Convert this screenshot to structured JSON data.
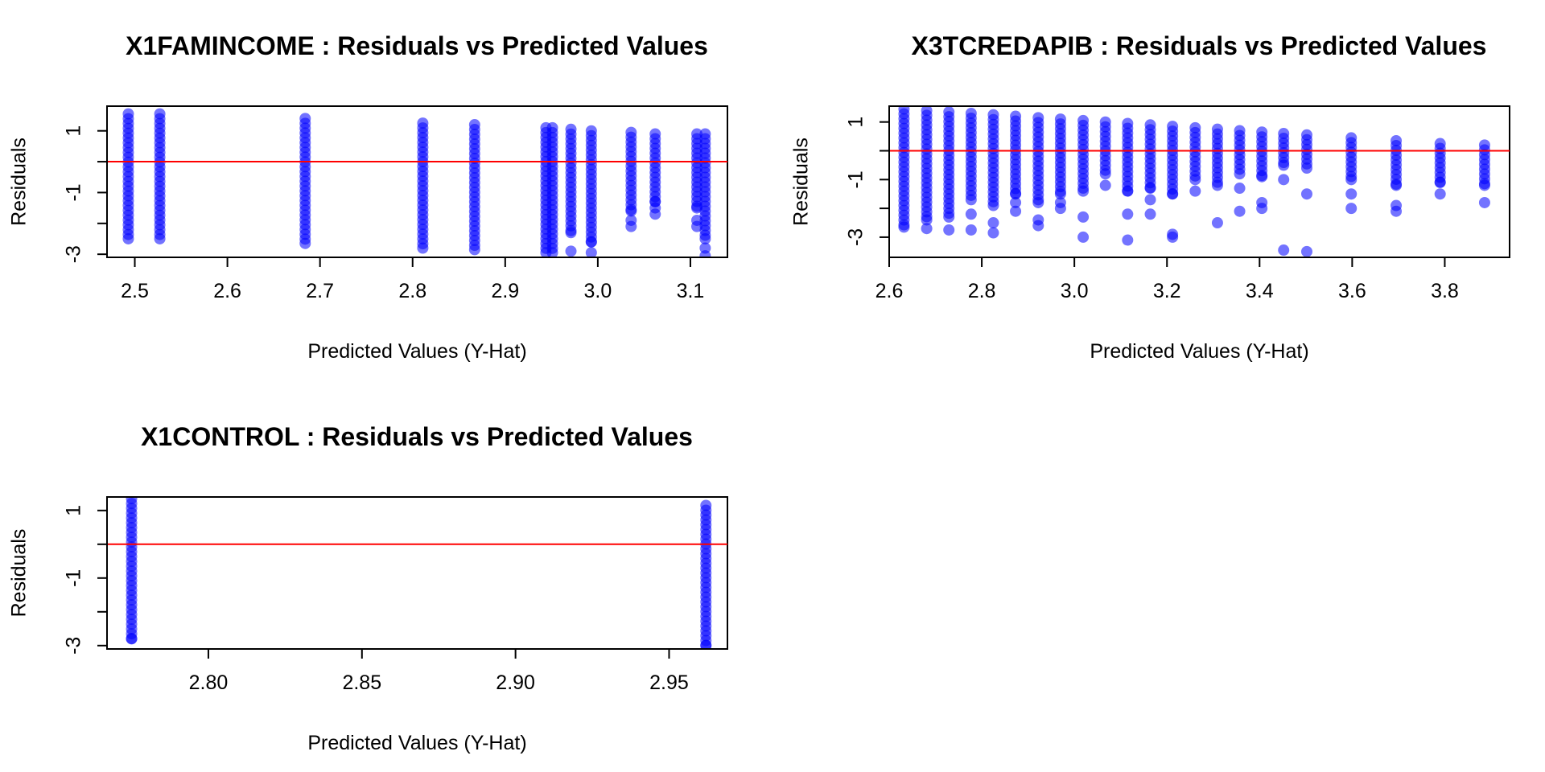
{
  "chart_data": [
    {
      "type": "scatter",
      "title": "X1FAMINCOME : Residuals vs Predicted Values",
      "xlabel": "Predicted Values (Y-Hat)",
      "ylabel": "Residuals",
      "xlim": [
        2.47,
        3.14
      ],
      "ylim": [
        -3.1,
        1.8
      ],
      "xticks": [
        2.5,
        2.6,
        2.7,
        2.8,
        2.9,
        3.0,
        3.1
      ],
      "xtick_labels": [
        "2.5",
        "2.6",
        "2.7",
        "2.8",
        "2.9",
        "3.0",
        "3.1"
      ],
      "yticks": [
        -3,
        -2,
        -1,
        0,
        1
      ],
      "ytick_labels": [
        "-3",
        "",
        "-1",
        "",
        "1"
      ],
      "reference_line": 0,
      "point_color": "#0000FF",
      "line_color": "#FF0000",
      "columns": [
        {
          "x": 2.493,
          "min": -2.5,
          "max": 1.55,
          "outliers": []
        },
        {
          "x": 2.527,
          "min": -2.5,
          "max": 1.55,
          "outliers": []
        },
        {
          "x": 2.684,
          "min": -2.65,
          "max": 1.4,
          "outliers": []
        },
        {
          "x": 2.811,
          "min": -2.8,
          "max": 1.25,
          "outliers": []
        },
        {
          "x": 2.867,
          "min": -2.85,
          "max": 1.2,
          "outliers": []
        },
        {
          "x": 2.944,
          "min": -2.95,
          "max": 1.1,
          "outliers": []
        },
        {
          "x": 2.951,
          "min": -2.95,
          "max": 1.1,
          "outliers": []
        },
        {
          "x": 2.971,
          "min": -2.3,
          "max": 1.05,
          "outliers": [
            -2.9
          ]
        },
        {
          "x": 2.993,
          "min": -2.6,
          "max": 1.0,
          "outliers": [
            -2.95
          ]
        },
        {
          "x": 3.036,
          "min": -1.6,
          "max": 0.95,
          "outliers": [
            -1.9,
            -2.1
          ]
        },
        {
          "x": 3.062,
          "min": -1.3,
          "max": 0.9,
          "outliers": [
            -1.5,
            -1.7
          ]
        },
        {
          "x": 3.107,
          "min": -1.5,
          "max": 0.9,
          "outliers": [
            -1.9,
            -2.1
          ]
        },
        {
          "x": 3.116,
          "min": -2.5,
          "max": 0.9,
          "outliers": [
            -2.8,
            -3.05
          ]
        }
      ]
    },
    {
      "type": "scatter",
      "title": "X3TCREDAPIB : Residuals vs Predicted Values",
      "xlabel": "Predicted Values (Y-Hat)",
      "ylabel": "Residuals",
      "xlim": [
        2.6,
        3.94
      ],
      "ylim": [
        -3.7,
        1.55
      ],
      "xticks": [
        2.6,
        2.8,
        3.0,
        3.2,
        3.4,
        3.6,
        3.8
      ],
      "xtick_labels": [
        "2.6",
        "2.8",
        "3.0",
        "3.2",
        "3.4",
        "3.6",
        "3.8"
      ],
      "yticks": [
        -3,
        -2,
        -1,
        0,
        1
      ],
      "ytick_labels": [
        "-3",
        "",
        "-1",
        "",
        "1"
      ],
      "reference_line": 0,
      "point_color": "#0000FF",
      "line_color": "#FF0000",
      "columns": [
        {
          "x": 2.632,
          "min": -2.65,
          "max": 1.45,
          "outliers": []
        },
        {
          "x": 2.681,
          "min": -2.4,
          "max": 1.4,
          "outliers": [
            -2.7
          ]
        },
        {
          "x": 2.729,
          "min": -2.3,
          "max": 1.35,
          "outliers": [
            -2.75
          ]
        },
        {
          "x": 2.777,
          "min": -1.7,
          "max": 1.3,
          "outliers": [
            -2.2,
            -2.75
          ]
        },
        {
          "x": 2.825,
          "min": -1.9,
          "max": 1.25,
          "outliers": [
            -2.5,
            -2.85
          ]
        },
        {
          "x": 2.873,
          "min": -1.5,
          "max": 1.2,
          "outliers": [
            -1.8,
            -2.1
          ]
        },
        {
          "x": 2.922,
          "min": -1.8,
          "max": 1.15,
          "outliers": [
            -2.4,
            -2.6
          ]
        },
        {
          "x": 2.97,
          "min": -1.5,
          "max": 1.1,
          "outliers": [
            -1.8,
            -2.0
          ]
        },
        {
          "x": 3.019,
          "min": -1.4,
          "max": 1.05,
          "outliers": [
            -2.3,
            -3.0
          ]
        },
        {
          "x": 3.067,
          "min": -0.8,
          "max": 1.0,
          "outliers": [
            -1.2
          ]
        },
        {
          "x": 3.115,
          "min": -1.4,
          "max": 0.95,
          "outliers": [
            -2.2,
            -3.1
          ]
        },
        {
          "x": 3.164,
          "min": -1.3,
          "max": 0.9,
          "outliers": [
            -1.7,
            -2.2
          ]
        },
        {
          "x": 3.212,
          "min": -1.5,
          "max": 0.85,
          "outliers": [
            -2.9,
            -3.0
          ]
        },
        {
          "x": 3.261,
          "min": -1.0,
          "max": 0.8,
          "outliers": [
            -1.4
          ]
        },
        {
          "x": 3.309,
          "min": -1.2,
          "max": 0.75,
          "outliers": [
            -2.5
          ]
        },
        {
          "x": 3.357,
          "min": -0.8,
          "max": 0.7,
          "outliers": [
            -1.3,
            -2.1
          ]
        },
        {
          "x": 3.405,
          "min": -0.9,
          "max": 0.65,
          "outliers": [
            -1.8,
            -2.0
          ]
        },
        {
          "x": 3.452,
          "min": -0.5,
          "max": 0.6,
          "outliers": [
            -1.0,
            -3.45
          ]
        },
        {
          "x": 3.502,
          "min": -0.6,
          "max": 0.55,
          "outliers": [
            -1.5,
            -3.5
          ]
        },
        {
          "x": 3.598,
          "min": -1.0,
          "max": 0.45,
          "outliers": [
            -1.5,
            -2.0
          ]
        },
        {
          "x": 3.695,
          "min": -1.2,
          "max": 0.35,
          "outliers": [
            -1.9,
            -2.1
          ]
        },
        {
          "x": 3.79,
          "min": -1.1,
          "max": 0.25,
          "outliers": [
            -1.5
          ]
        },
        {
          "x": 3.886,
          "min": -1.2,
          "max": 0.2,
          "outliers": [
            -1.8
          ]
        }
      ]
    },
    {
      "type": "scatter",
      "title": "X1CONTROL : Residuals vs Predicted Values",
      "xlabel": "Predicted Values (Y-Hat)",
      "ylabel": "Residuals",
      "xlim": [
        2.767,
        2.969
      ],
      "ylim": [
        -3.1,
        1.4
      ],
      "xticks": [
        2.8,
        2.85,
        2.9,
        2.95
      ],
      "xtick_labels": [
        "2.80",
        "2.85",
        "2.90",
        "2.95"
      ],
      "yticks": [
        -3,
        -2,
        -1,
        0,
        1
      ],
      "ytick_labels": [
        "-3",
        "",
        "-1",
        "",
        "1"
      ],
      "reference_line": 0,
      "point_color": "#0000FF",
      "line_color": "#FF0000",
      "columns": [
        {
          "x": 2.775,
          "min": -2.8,
          "max": 1.35,
          "outliers": []
        },
        {
          "x": 2.962,
          "min": -3.0,
          "max": 1.15,
          "outliers": []
        }
      ]
    }
  ]
}
